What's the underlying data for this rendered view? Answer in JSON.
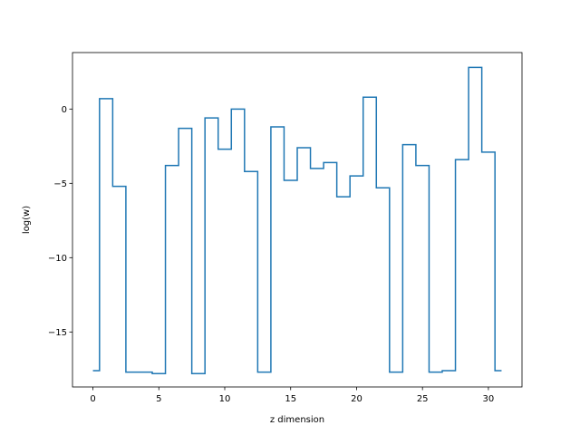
{
  "chart_data": {
    "type": "line",
    "style": "step-mid",
    "title": "",
    "xlabel": "z dimension",
    "ylabel": "log(w)",
    "xlim": [
      -1.55,
      32.55
    ],
    "ylim": [
      -18.7,
      3.8
    ],
    "xticks": [
      0,
      5,
      10,
      15,
      20,
      25,
      30
    ],
    "xtick_labels": [
      "0",
      "5",
      "10",
      "15",
      "20",
      "25",
      "30"
    ],
    "yticks": [
      -15,
      -10,
      -5,
      0
    ],
    "ytick_labels": [
      "−15",
      "−10",
      "−5",
      "0"
    ],
    "grid": false,
    "legend": false,
    "series": [
      {
        "color": "#1f77b4",
        "x": [
          0,
          1,
          2,
          3,
          4,
          5,
          6,
          7,
          8,
          9,
          10,
          11,
          12,
          13,
          14,
          15,
          16,
          17,
          18,
          19,
          20,
          21,
          22,
          23,
          24,
          25,
          26,
          27,
          28,
          29,
          30,
          31
        ],
        "y": [
          -17.6,
          0.7,
          -5.2,
          -17.7,
          -17.7,
          -17.8,
          -3.8,
          -1.3,
          -17.8,
          -0.6,
          -2.7,
          0.0,
          -4.2,
          -17.7,
          -1.2,
          -4.8,
          -2.6,
          -4.0,
          -3.6,
          -5.9,
          -4.5,
          0.8,
          -5.3,
          -17.7,
          -2.4,
          -3.8,
          -17.7,
          -17.6,
          -3.4,
          2.8,
          -2.9,
          -17.6
        ]
      }
    ]
  }
}
